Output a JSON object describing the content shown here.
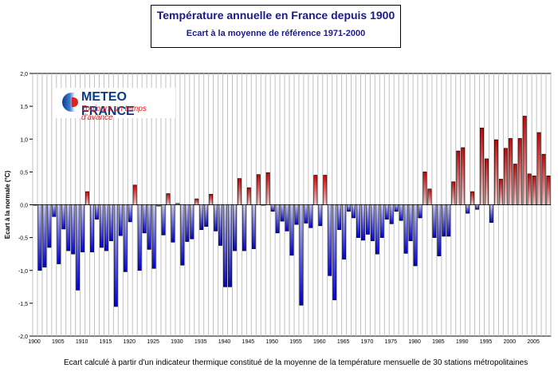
{
  "header": {
    "title": "Température annuelle en France depuis 1900",
    "subtitle": "Ecart à la moyenne de référence 1971-2000"
  },
  "logo": {
    "name": "METEO FRANCE",
    "tagline": "Toujours un temps d'avance"
  },
  "footer": {
    "note": "Ecart calculé à partir d'un indicateur thermique constitué de la moyenne de la température mensuelle de 30 stations métropolitaines"
  },
  "colors": {
    "positive_top": "#f0c8c8",
    "positive_bottom": "#cc0000",
    "negative_top": "#c8c8f0",
    "negative_bottom": "#0000cc",
    "grid": "#c0c0c0"
  },
  "chart_data": {
    "type": "bar",
    "title": "Température annuelle en France depuis 1900",
    "subtitle": "Ecart à la moyenne de référence 1971-2000",
    "xlabel": "",
    "ylabel": "Ecart à la normale (°C)",
    "ylim": [
      -2.0,
      2.0
    ],
    "yticks": [
      "2,0",
      "1,5",
      "1,0",
      "0,5",
      "0,0",
      "-0,5",
      "-1,0",
      "-1,5",
      "-2,0"
    ],
    "ytick_values": [
      2.0,
      1.5,
      1.0,
      0.5,
      0.0,
      -0.5,
      -1.0,
      -1.5,
      -2.0
    ],
    "xticks": [
      "1900",
      "1905",
      "1910",
      "1915",
      "1920",
      "1925",
      "1930",
      "1935",
      "1940",
      "1945",
      "1950",
      "1955",
      "1960",
      "1965",
      "1970",
      "1975",
      "1980",
      "1985",
      "1990",
      "1995",
      "2000",
      "2005"
    ],
    "grid": true,
    "categories": [
      1900,
      1901,
      1902,
      1903,
      1904,
      1905,
      1906,
      1907,
      1908,
      1909,
      1910,
      1911,
      1912,
      1913,
      1914,
      1915,
      1916,
      1917,
      1918,
      1919,
      1920,
      1921,
      1922,
      1923,
      1924,
      1925,
      1926,
      1927,
      1928,
      1929,
      1930,
      1931,
      1932,
      1933,
      1934,
      1935,
      1936,
      1937,
      1938,
      1939,
      1940,
      1941,
      1942,
      1943,
      1944,
      1945,
      1946,
      1947,
      1948,
      1949,
      1950,
      1951,
      1952,
      1953,
      1954,
      1955,
      1956,
      1957,
      1958,
      1959,
      1960,
      1961,
      1962,
      1963,
      1964,
      1965,
      1966,
      1967,
      1968,
      1969,
      1970,
      1971,
      1972,
      1973,
      1974,
      1975,
      1976,
      1977,
      1978,
      1979,
      1980,
      1981,
      1982,
      1983,
      1984,
      1985,
      1986,
      1987,
      1988,
      1989,
      1990,
      1991,
      1992,
      1993,
      1994,
      1995,
      1996,
      1997,
      1998,
      1999,
      2000,
      2001,
      2002,
      2003,
      2004,
      2005,
      2006,
      2007,
      2008
    ],
    "values": [
      0.0,
      -1.0,
      -0.95,
      -0.65,
      -0.18,
      -0.9,
      -0.37,
      -0.7,
      -0.75,
      -1.3,
      -0.72,
      0.2,
      -0.72,
      -0.22,
      -0.65,
      -0.7,
      -0.55,
      -1.55,
      -0.47,
      -1.02,
      -0.26,
      0.3,
      -1.0,
      -0.43,
      -0.68,
      -0.97,
      -0.02,
      -0.46,
      0.17,
      -0.57,
      0.02,
      -0.92,
      -0.56,
      -0.52,
      0.09,
      -0.38,
      -0.33,
      0.16,
      -0.4,
      -0.62,
      -1.25,
      -1.25,
      -0.7,
      0.4,
      -0.7,
      0.26,
      -0.67,
      0.46,
      0.0,
      0.49,
      -0.1,
      -0.43,
      -0.25,
      -0.4,
      -0.77,
      -0.3,
      -1.53,
      -0.28,
      -0.35,
      0.45,
      -0.32,
      0.45,
      -1.08,
      -1.45,
      -0.38,
      -0.83,
      -0.1,
      -0.2,
      -0.5,
      -0.54,
      -0.45,
      -0.55,
      -0.75,
      -0.5,
      -0.22,
      -0.29,
      -0.1,
      -0.24,
      -0.74,
      -0.55,
      -0.93,
      -0.2,
      0.5,
      0.24,
      -0.5,
      -0.78,
      -0.48,
      -0.48,
      0.35,
      0.82,
      0.87,
      -0.13,
      0.2,
      -0.07,
      1.17,
      0.7,
      -0.27,
      0.99,
      0.39,
      0.86,
      1.01,
      0.62,
      1.01,
      1.35,
      0.47,
      0.44,
      1.1,
      0.77,
      0.44
    ]
  }
}
